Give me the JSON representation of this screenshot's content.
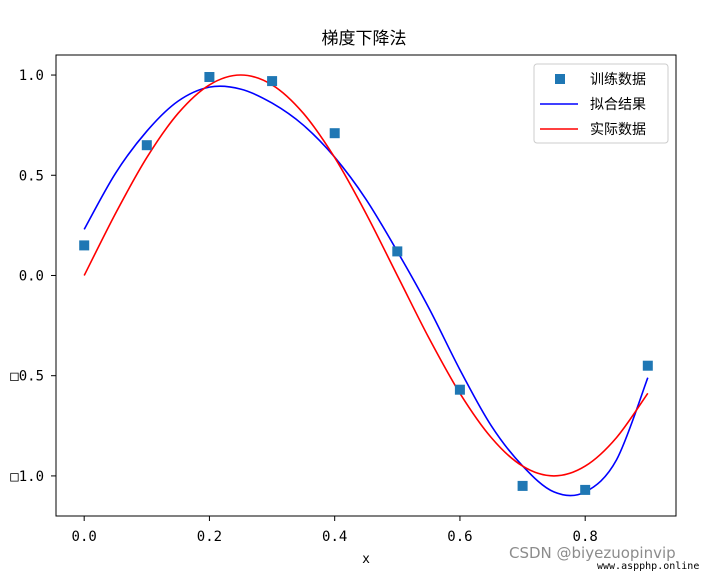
{
  "chart_data": {
    "type": "line",
    "title": "梯度下降法",
    "xlabel": "x",
    "ylabel": "",
    "xlim": [
      -0.045,
      0.945
    ],
    "ylim": [
      -1.2,
      1.1
    ],
    "grid": false,
    "legend_position": "upper-right",
    "x_ticks": [
      0.0,
      0.2,
      0.4,
      0.6,
      0.8
    ],
    "x_tick_labels": [
      "0.0",
      "0.2",
      "0.4",
      "0.6",
      "0.8"
    ],
    "y_ticks": [
      1.0,
      0.5,
      0.0,
      -0.5,
      -1.0
    ],
    "y_tick_labels": [
      "1.0",
      "0.5",
      "0.0",
      "□0.5",
      "□1.0"
    ],
    "series": [
      {
        "name": "训练数据",
        "kind": "scatter",
        "marker": "square",
        "color": "#1f77b4",
        "x": [
          0.0,
          0.1,
          0.2,
          0.3,
          0.4,
          0.5,
          0.6,
          0.7,
          0.8,
          0.9
        ],
        "y": [
          0.15,
          0.65,
          0.99,
          0.97,
          0.71,
          0.12,
          -0.57,
          -1.05,
          -1.07,
          -0.45
        ]
      },
      {
        "name": "拟合结果",
        "kind": "line",
        "color": "#0000ff",
        "x": [
          0.0,
          0.05,
          0.1,
          0.15,
          0.2,
          0.25,
          0.3,
          0.35,
          0.4,
          0.45,
          0.5,
          0.55,
          0.6,
          0.65,
          0.7,
          0.75,
          0.8,
          0.85,
          0.9
        ],
        "y": [
          0.23,
          0.51,
          0.72,
          0.87,
          0.94,
          0.93,
          0.86,
          0.75,
          0.59,
          0.38,
          0.12,
          -0.16,
          -0.47,
          -0.75,
          -0.95,
          -1.08,
          -1.08,
          -0.92,
          -0.51
        ]
      },
      {
        "name": "实际数据",
        "kind": "line",
        "color": "#ff0000",
        "x": [
          0.0,
          0.05,
          0.1,
          0.15,
          0.2,
          0.25,
          0.3,
          0.35,
          0.4,
          0.45,
          0.5,
          0.55,
          0.6,
          0.65,
          0.7,
          0.75,
          0.8,
          0.85,
          0.9
        ],
        "y": [
          0.0,
          0.309,
          0.588,
          0.809,
          0.951,
          1.0,
          0.951,
          0.809,
          0.588,
          0.309,
          0.0,
          -0.309,
          -0.588,
          -0.809,
          -0.951,
          -1.0,
          -0.951,
          -0.809,
          -0.588
        ]
      }
    ]
  },
  "watermark": {
    "text": "CSDN @biyezuopinvip",
    "site": "www.aspphp.online"
  }
}
